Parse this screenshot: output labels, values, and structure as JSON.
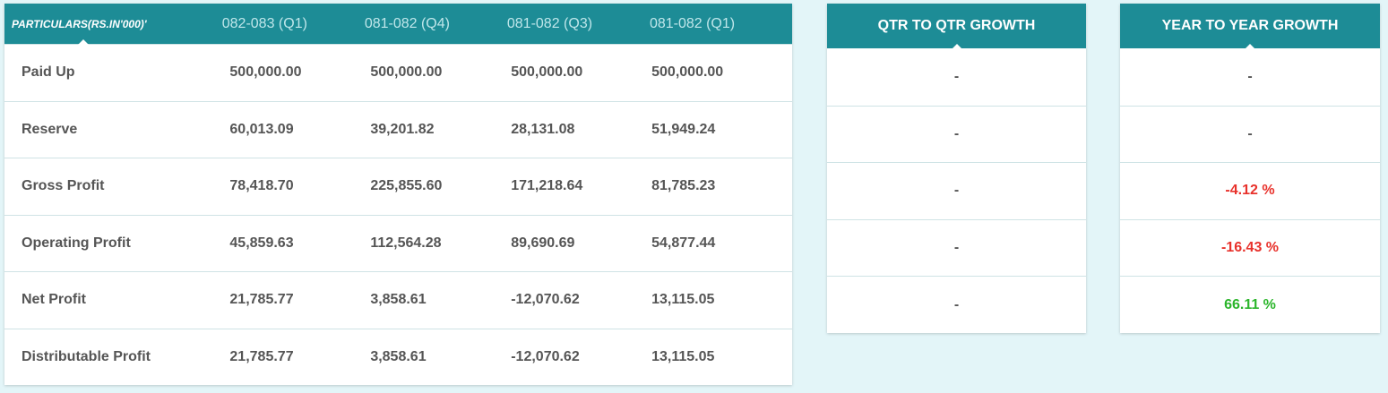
{
  "table": {
    "header": {
      "particulars": "PARTICULARS(RS.IN'000)'",
      "periods": [
        "082-083 (Q1)",
        "081-082 (Q4)",
        "081-082 (Q3)",
        "081-082 (Q1)"
      ]
    },
    "rows": [
      {
        "label": "Paid Up",
        "values": [
          "500,000.00",
          "500,000.00",
          "500,000.00",
          "500,000.00"
        ]
      },
      {
        "label": "Reserve",
        "values": [
          "60,013.09",
          "39,201.82",
          "28,131.08",
          "51,949.24"
        ]
      },
      {
        "label": "Gross Profit",
        "values": [
          "78,418.70",
          "225,855.60",
          "171,218.64",
          "81,785.23"
        ]
      },
      {
        "label": "Operating Profit",
        "values": [
          "45,859.63",
          "112,564.28",
          "89,690.69",
          "54,877.44"
        ]
      },
      {
        "label": "Net Profit",
        "values": [
          "21,785.77",
          "3,858.61",
          "-12,070.62",
          "13,115.05"
        ]
      },
      {
        "label": "Distributable Profit",
        "values": [
          "21,785.77",
          "3,858.61",
          "-12,070.62",
          "13,115.05"
        ]
      }
    ]
  },
  "qtr_growth": {
    "title": "QTR TO QTR GROWTH",
    "values": [
      "-",
      "-",
      "-",
      "-",
      "-"
    ]
  },
  "yoy_growth": {
    "title": "YEAR TO YEAR GROWTH",
    "values": [
      {
        "text": "-",
        "status": "neutral"
      },
      {
        "text": "-",
        "status": "neutral"
      },
      {
        "text": "-4.12 %",
        "status": "negative"
      },
      {
        "text": "-16.43 %",
        "status": "negative"
      },
      {
        "text": "66.11 %",
        "status": "positive"
      }
    ]
  },
  "colors": {
    "header_bg": "#1d8c96",
    "negative": "#e8312b",
    "positive": "#2bb52b",
    "text": "#555555",
    "page_bg": "#e3f5f8"
  }
}
